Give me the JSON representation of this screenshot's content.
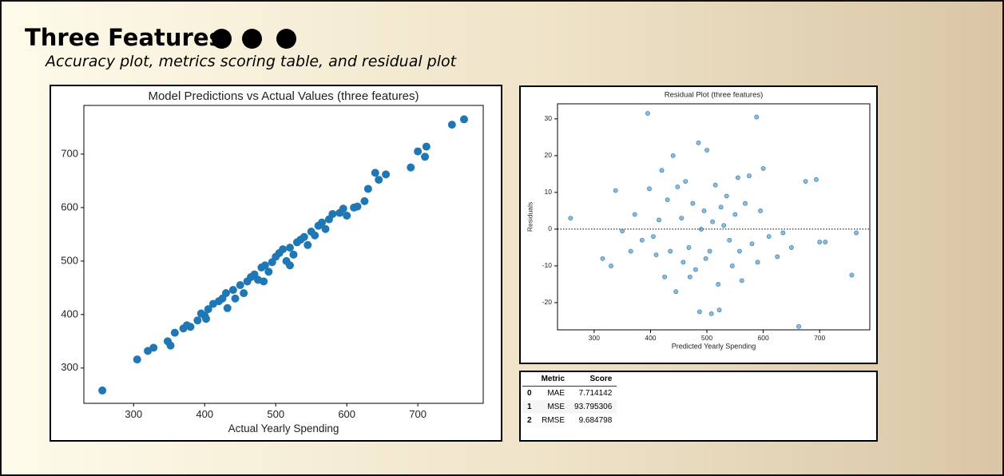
{
  "header": {
    "title": "Three Features",
    "subtitle": "Accuracy plot, metrics scoring table, and residual plot"
  },
  "chart_data": [
    {
      "type": "scatter",
      "title": "Model Predictions vs Actual Values (three features)",
      "x_label": "Actual Yearly Spending",
      "color": "#1f77b4",
      "x": [
        256,
        305,
        320,
        328,
        348,
        352,
        358,
        370,
        375,
        380,
        390,
        395,
        400,
        405,
        412,
        420,
        425,
        430,
        432,
        440,
        443,
        450,
        455,
        460,
        465,
        470,
        475,
        480,
        485,
        490,
        495,
        500,
        505,
        510,
        515,
        520,
        525,
        530,
        535,
        540,
        545,
        550,
        555,
        560,
        565,
        570,
        575,
        580,
        590,
        595,
        600,
        610,
        615,
        625,
        630,
        640,
        645,
        655,
        690,
        700,
        710,
        712,
        748,
        765,
        520,
        483,
        402
      ],
      "values": [
        258,
        316,
        332,
        338,
        350,
        342,
        366,
        374,
        380,
        377,
        389,
        402,
        398,
        410,
        420,
        425,
        430,
        440,
        412,
        446,
        430,
        455,
        440,
        462,
        470,
        475,
        465,
        488,
        492,
        480,
        498,
        508,
        515,
        522,
        500,
        525,
        512,
        535,
        540,
        545,
        530,
        555,
        548,
        566,
        572,
        560,
        578,
        588,
        590,
        598,
        585,
        600,
        602,
        612,
        635,
        665,
        652,
        662,
        675,
        705,
        695,
        714,
        755,
        765,
        492,
        462,
        392
      ],
      "xlim": [
        230,
        792
      ],
      "ylim": [
        234,
        791
      ],
      "xticks": [
        300,
        400,
        500,
        600,
        700
      ],
      "yticks": [
        300,
        400,
        500,
        600,
        700
      ]
    },
    {
      "type": "scatter",
      "title": "Residual Plot (three features)",
      "x_label": "Predicted Yearly Spending",
      "y_label": "Residuals",
      "color": "#1f77b4",
      "reference_y": 0,
      "x": [
        258,
        315,
        330,
        338,
        350,
        365,
        372,
        385,
        395,
        398,
        405,
        410,
        415,
        420,
        425,
        430,
        435,
        440,
        445,
        448,
        455,
        458,
        462,
        468,
        470,
        475,
        480,
        485,
        487,
        490,
        495,
        498,
        500,
        505,
        508,
        510,
        515,
        520,
        522,
        525,
        530,
        535,
        540,
        545,
        550,
        555,
        558,
        562,
        568,
        575,
        580,
        588,
        590,
        595,
        600,
        610,
        625,
        635,
        650,
        663,
        675,
        694,
        700,
        710,
        757,
        765
      ],
      "values": [
        3,
        -8,
        -10,
        10.5,
        -0.5,
        -6,
        4,
        -3,
        31.5,
        11,
        -2,
        -7,
        2.5,
        16,
        -13,
        8,
        -6,
        20,
        -17,
        11.5,
        3,
        -9,
        13,
        -5,
        -13,
        7,
        -11,
        23.5,
        -22.5,
        0,
        5,
        -8,
        21.5,
        -6,
        -23,
        2,
        12,
        -15,
        -22,
        6,
        1,
        9,
        -3,
        -10,
        4,
        14,
        -6,
        -14,
        7,
        14.5,
        -4,
        30.5,
        -9,
        5,
        16.5,
        -2,
        -7.5,
        -1,
        -5,
        -26.5,
        13,
        13.5,
        -3.5,
        -3.5,
        -12.5,
        -1
      ],
      "xlim": [
        235,
        789
      ],
      "ylim": [
        -27.4,
        34.1
      ],
      "xticks": [
        300,
        400,
        500,
        600,
        700
      ],
      "yticks": [
        -20,
        -10,
        0,
        10,
        20,
        30
      ]
    }
  ],
  "table": {
    "columns": [
      "Metric",
      "Score"
    ],
    "rows": [
      [
        0,
        "MAE",
        7.714142
      ],
      [
        1,
        "MSE",
        93.795306
      ],
      [
        2,
        "RMSE",
        9.684798
      ]
    ]
  }
}
